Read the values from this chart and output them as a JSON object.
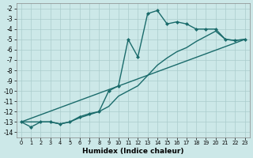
{
  "xlabel": "Humidex (Indice chaleur)",
  "bg_color": "#cce8e8",
  "grid_color": "#aacccc",
  "line_color": "#1a6b6b",
  "markersize": 2.5,
  "linewidth": 1.0,
  "xlim": [
    -0.5,
    23.5
  ],
  "ylim": [
    -14.5,
    -1.5
  ],
  "xticks": [
    0,
    1,
    2,
    3,
    4,
    5,
    6,
    7,
    8,
    9,
    10,
    11,
    12,
    13,
    14,
    15,
    16,
    17,
    18,
    19,
    20,
    21,
    22,
    23
  ],
  "yticks": [
    -2,
    -3,
    -4,
    -5,
    -6,
    -7,
    -8,
    -9,
    -10,
    -11,
    -12,
    -13,
    -14
  ],
  "curve1_x": [
    0,
    1,
    2,
    3,
    4,
    5,
    6,
    7,
    8,
    9,
    10,
    11,
    12,
    13,
    14,
    15,
    16,
    17,
    18,
    19,
    20,
    21,
    22,
    23
  ],
  "curve1_y": [
    -13.0,
    -13.5,
    -13.0,
    -13.0,
    -13.2,
    -13.0,
    -12.5,
    -12.2,
    -12.0,
    -10.0,
    -9.5,
    -5.0,
    -6.7,
    -2.5,
    -2.2,
    -3.5,
    -3.3,
    -3.5,
    -4.0,
    -4.0,
    -4.0,
    -5.0,
    -5.1,
    -5.0
  ],
  "curve2_x": [
    0,
    2,
    3,
    4,
    5,
    6,
    7,
    8,
    9,
    10,
    11,
    12,
    13,
    14,
    15,
    16,
    17,
    18,
    19,
    20,
    21,
    22,
    23
  ],
  "curve2_y": [
    -13.0,
    -13.0,
    -13.0,
    -13.2,
    -13.0,
    -12.6,
    -12.3,
    -12.0,
    -11.5,
    -10.5,
    -10.0,
    -9.5,
    -8.5,
    -7.5,
    -6.8,
    -6.2,
    -5.8,
    -5.2,
    -4.7,
    -4.2,
    -5.0,
    -5.1,
    -5.0
  ],
  "curve3_x": [
    0,
    23
  ],
  "curve3_y": [
    -13.0,
    -5.0
  ]
}
